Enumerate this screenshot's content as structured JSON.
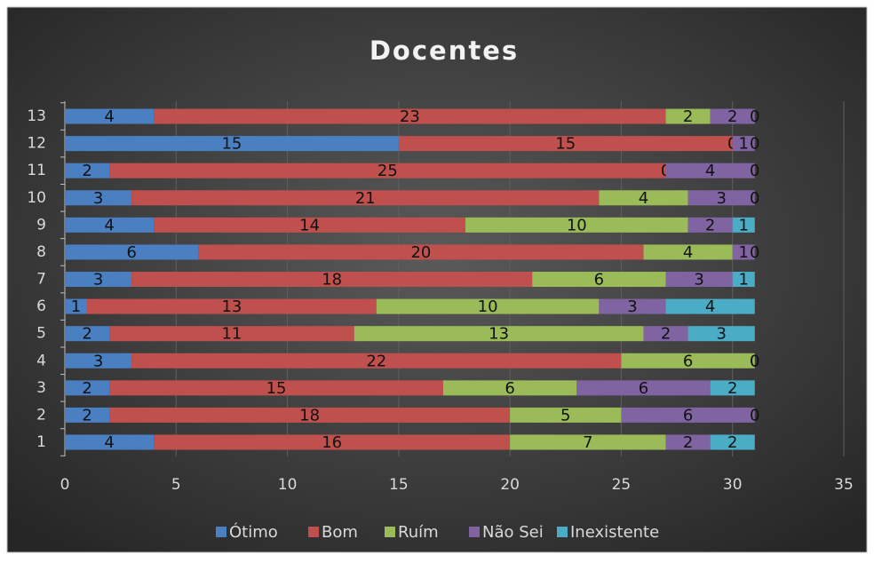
{
  "chart_data": {
    "type": "stacked_barh",
    "title": "Docentes",
    "categories": [
      "1",
      "2",
      "3",
      "4",
      "5",
      "6",
      "7",
      "8",
      "9",
      "10",
      "11",
      "12",
      "13"
    ],
    "series": [
      {
        "name": "Ótimo",
        "color": "#4a7fc1",
        "values": [
          4,
          2,
          2,
          3,
          2,
          1,
          3,
          6,
          4,
          3,
          2,
          15,
          4
        ]
      },
      {
        "name": "Bom",
        "color": "#c0504d",
        "values": [
          16,
          18,
          15,
          22,
          11,
          13,
          18,
          20,
          14,
          21,
          25,
          15,
          23
        ]
      },
      {
        "name": "Ruím",
        "color": "#9bbb59",
        "values": [
          7,
          5,
          6,
          6,
          13,
          10,
          6,
          4,
          10,
          4,
          0,
          0,
          2
        ]
      },
      {
        "name": "Não Sei",
        "color": "#8064a2",
        "values": [
          2,
          6,
          6,
          0,
          2,
          3,
          3,
          1,
          2,
          3,
          4,
          1,
          2
        ]
      },
      {
        "name": "Inexistente",
        "color": "#4bacc6",
        "values": [
          2,
          0,
          2,
          0,
          3,
          4,
          1,
          0,
          1,
          0,
          0,
          0,
          0
        ]
      }
    ],
    "xlim": [
      0,
      35
    ],
    "xticks": [
      0,
      5,
      10,
      15,
      20,
      25,
      30,
      35
    ],
    "grid": true,
    "legend": "bottom"
  }
}
